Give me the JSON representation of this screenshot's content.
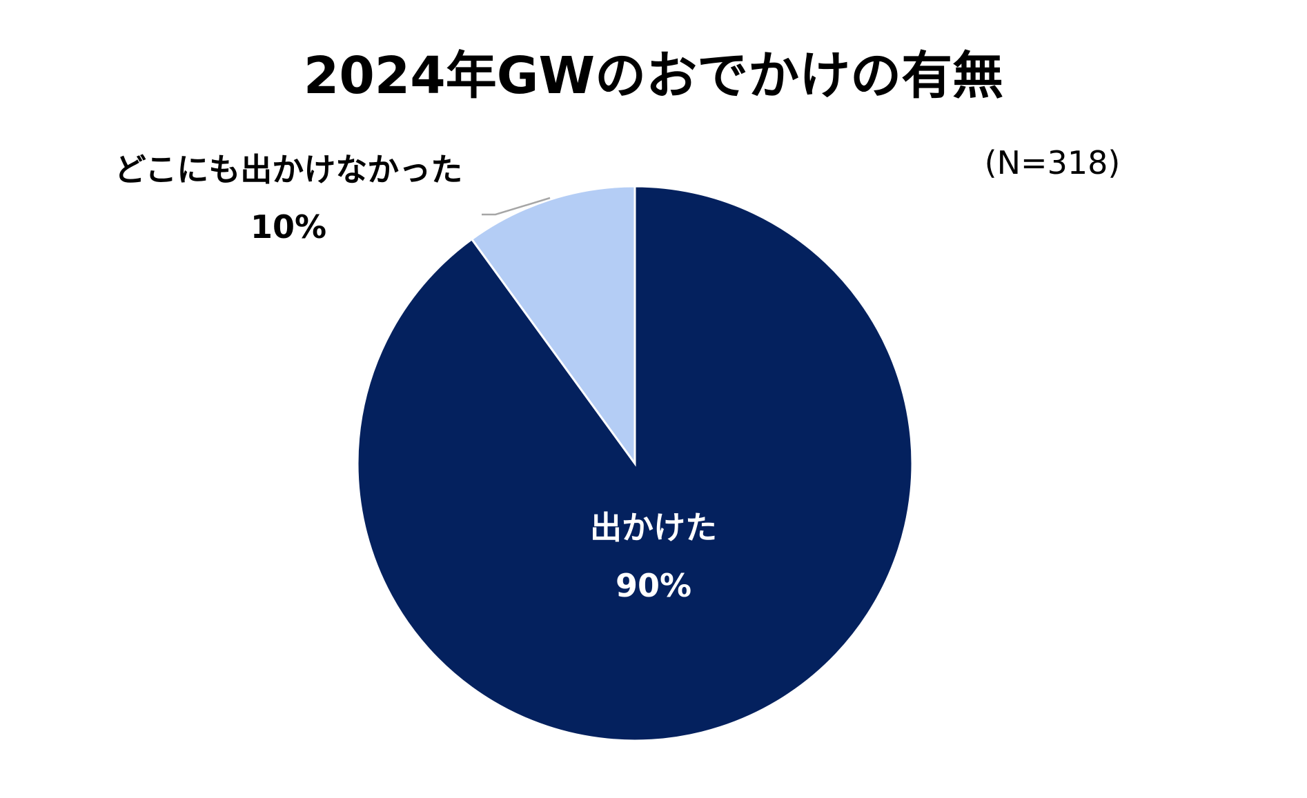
{
  "chart_data": {
    "type": "pie",
    "title": "2024年GWのおでかけの有無",
    "sample_note": "(N=318)",
    "slices": [
      {
        "label": "出かけた",
        "value": 90,
        "value_label": "90%",
        "color": "#04215E",
        "label_color": "#FFFFFF"
      },
      {
        "label": "どこにも出かけなかった",
        "value": 10,
        "value_label": "10%",
        "color": "#B4CDF5",
        "label_color": "#000000"
      }
    ],
    "start_angle_deg": 0,
    "direction": "counter-clockwise",
    "slice_border_color": "#FFFFFF",
    "leader_line_color": "#A6A6A6",
    "legend": "none"
  }
}
